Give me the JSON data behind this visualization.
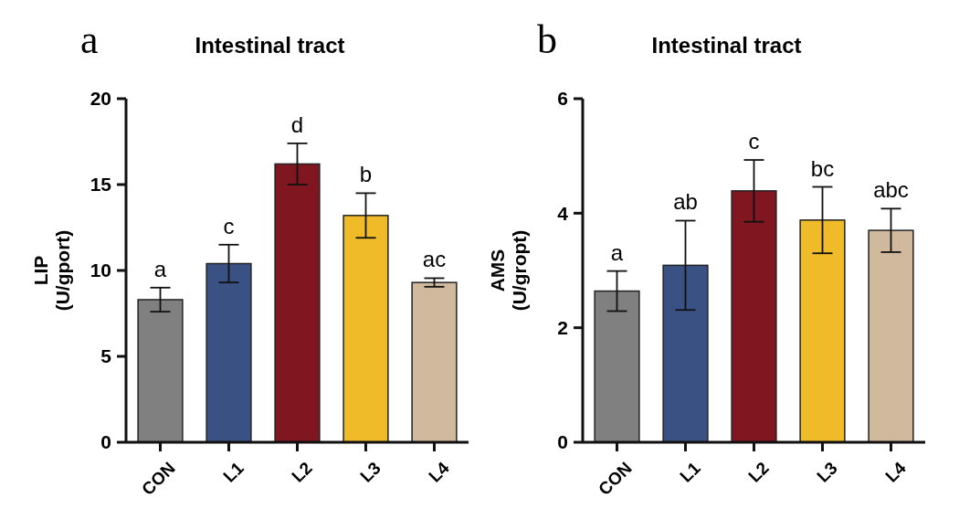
{
  "chart_data": [
    {
      "type": "bar",
      "title": "Intestinal tract",
      "ylabel": "LIP (U/gport)",
      "categories": [
        "CON",
        "L1",
        "L2",
        "L3",
        "L4"
      ],
      "values": [
        8.3,
        10.4,
        16.2,
        13.2,
        9.3
      ],
      "errors": [
        0.7,
        1.1,
        1.2,
        1.3,
        0.25
      ],
      "colors": [
        "#808080",
        "#3a5283",
        "#7f1620",
        "#f0bb28",
        "#d0b99c"
      ],
      "ylim": [
        0,
        20
      ],
      "yticks": [
        0,
        5,
        10,
        15,
        20
      ],
      "grid": false,
      "annotations": [
        "a",
        {
          "text": "a",
          "x": "CON",
          "y": 9.0
        },
        {
          "text": "c",
          "x": "L1",
          "y": 11.5
        },
        {
          "text": "d",
          "x": "L2",
          "y": 17.4
        },
        {
          "text": "b",
          "x": "L3",
          "y": 14.5
        },
        {
          "text": "ac",
          "x": "L4",
          "y": 9.55
        }
      ]
    },
    {
      "type": "bar",
      "title": "Intestinal tract",
      "ylabel": "AMS (U/gropt)",
      "categories": [
        "CON",
        "L1",
        "L2",
        "L3",
        "L4"
      ],
      "values": [
        2.64,
        3.09,
        4.39,
        3.88,
        3.7
      ],
      "errors": [
        0.35,
        0.78,
        0.54,
        0.58,
        0.38
      ],
      "colors": [
        "#808080",
        "#3a5283",
        "#7f1620",
        "#f0bb28",
        "#d0b99c"
      ],
      "ylim": [
        0,
        6
      ],
      "yticks": [
        0,
        2,
        4,
        6
      ],
      "grid": false,
      "annotations": [
        "b",
        {
          "text": "a",
          "x": "CON",
          "y": 2.99
        },
        {
          "text": "ab",
          "x": "L1",
          "y": 3.87
        },
        {
          "text": "c",
          "x": "L2",
          "y": 4.93
        },
        {
          "text": "bc",
          "x": "L3",
          "y": 4.46
        },
        {
          "text": "abc",
          "x": "L4",
          "y": 4.08
        }
      ]
    }
  ]
}
